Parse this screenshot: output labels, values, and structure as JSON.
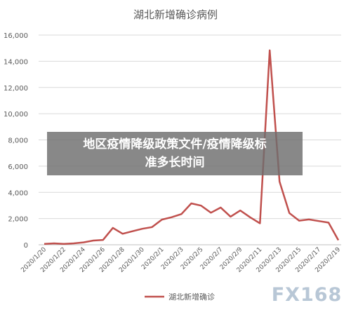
{
  "chart_data": {
    "type": "line",
    "title": "湖北新增确诊病例",
    "x": [
      "2020/1/20",
      "2020/1/21",
      "2020/1/22",
      "2020/1/23",
      "2020/1/24",
      "2020/1/25",
      "2020/1/26",
      "2020/1/27",
      "2020/1/28",
      "2020/1/29",
      "2020/1/30",
      "2020/1/31",
      "2020/2/1",
      "2020/2/2",
      "2020/2/3",
      "2020/2/4",
      "2020/2/5",
      "2020/2/6",
      "2020/2/7",
      "2020/2/8",
      "2020/2/9",
      "2020/2/10",
      "2020/2/11",
      "2020/2/12",
      "2020/2/13",
      "2020/2/14",
      "2020/2/15",
      "2020/2/16",
      "2020/2/17",
      "2020/2/18",
      "2020/2/19"
    ],
    "tick_labels": [
      "2020/1/20",
      "2020/1/22",
      "2020/1/24",
      "2020/1/26",
      "2020/1/28",
      "2020/1/30",
      "2020/2/1",
      "2020/2/3",
      "2020/2/5",
      "2020/2/7",
      "2020/2/9",
      "2020/2/11",
      "2020/2/13",
      "2020/2/15",
      "2020/2/17",
      "2020/2/19"
    ],
    "series": [
      {
        "name": "湖北新增确诊",
        "color": "#c0504d",
        "values": [
          72,
          105,
          69,
          105,
          180,
          323,
          371,
          1291,
          840,
          1032,
          1220,
          1347,
          1921,
          2103,
          2345,
          3156,
          2987,
          2447,
          2841,
          2147,
          2618,
          2097,
          1638,
          14840,
          4823,
          2420,
          1843,
          1933,
          1807,
          1693,
          349
        ]
      }
    ],
    "ylim": [
      0,
      16000
    ],
    "yticks": [
      "0",
      "2,000",
      "4,000",
      "6,000",
      "8,000",
      "10,000",
      "12,000",
      "14,000",
      "16,000"
    ],
    "ytick_values": [
      0,
      2000,
      4000,
      6000,
      8000,
      10000,
      12000,
      14000,
      16000
    ],
    "grid": true,
    "legend_position": "bottom"
  },
  "overlay": {
    "line1": "地区疫情降级政策文件/疫情降级标",
    "line2": "准多长时间"
  },
  "watermark": {
    "text": "FX168"
  }
}
